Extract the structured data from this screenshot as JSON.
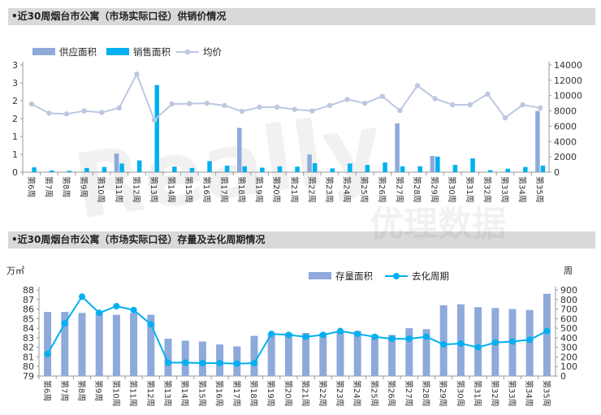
{
  "sections": {
    "top_title": "•近30周烟台市公寓（市场实际口径）供销价情况",
    "bottom_title": "•近30周烟台市公寓（市场实际口径）存量及去化周期情况"
  },
  "watermark": {
    "text1": "Really",
    "text2": "优理数据"
  },
  "colors": {
    "supply": "#8eaadb",
    "sales": "#00b0f0",
    "price": "#bdc7e0",
    "stock": "#8eaadb",
    "cycle": "#00b0f0"
  },
  "chart_data": [
    {
      "type": "bar",
      "categories": [
        "第6周",
        "第7周",
        "第8周",
        "第9周",
        "第10周",
        "第11周",
        "第12周",
        "第13周",
        "第14周",
        "第15周",
        "第16周",
        "第17周",
        "第18周",
        "第19周",
        "第20周",
        "第21周",
        "第22周",
        "第23周",
        "第24周",
        "第25周",
        "第26周",
        "第27周",
        "第28周",
        "第29周",
        "第30周",
        "第31周",
        "第32周",
        "第33周",
        "第34周",
        "第35周"
      ],
      "left_axis": {
        "ticks": [
          "0",
          "1",
          "1",
          "2",
          "2",
          "3",
          "3"
        ],
        "ylim": [
          0,
          3.1
        ]
      },
      "right_axis": {
        "ticks": [
          "0",
          "2000",
          "4000",
          "6000",
          "8000",
          "10000",
          "12000",
          "14000"
        ],
        "ylim": [
          0,
          14000
        ]
      },
      "legend": {
        "position": "top"
      },
      "series": [
        {
          "name": "供应面积",
          "kind": "bar",
          "axis": "left",
          "values": [
            0,
            0,
            0,
            0,
            0,
            0.54,
            0,
            0,
            0,
            0,
            0,
            0,
            1.28,
            0,
            0,
            0,
            0.51,
            0,
            0,
            0,
            0,
            1.41,
            0,
            0.47,
            0,
            0,
            0,
            0,
            0,
            1.77
          ]
        },
        {
          "name": "销售面积",
          "kind": "bar",
          "axis": "left",
          "values": [
            0.14,
            0.05,
            0.04,
            0.12,
            0.15,
            0.25,
            0.34,
            2.52,
            0.16,
            0.12,
            0.32,
            0.19,
            0.17,
            0.13,
            0.17,
            0.16,
            0.26,
            0.11,
            0.25,
            0.21,
            0.28,
            0.17,
            0.17,
            0.45,
            0.21,
            0.4,
            0.06,
            0.1,
            0.15,
            0.19
          ]
        },
        {
          "name": "均价",
          "kind": "line",
          "axis": "right",
          "values": [
            8900,
            7700,
            7600,
            8000,
            7800,
            8400,
            12800,
            6800,
            8900,
            8950,
            9000,
            8700,
            7950,
            8500,
            8500,
            8200,
            8000,
            8700,
            9500,
            9000,
            9900,
            8050,
            11300,
            9600,
            8800,
            8800,
            10200,
            7100,
            8800,
            8400
          ]
        }
      ]
    },
    {
      "type": "bar",
      "categories": [
        "第6周",
        "第7周",
        "第8周",
        "第9周",
        "第10周",
        "第11周",
        "第12周",
        "第13周",
        "第14周",
        "第15周",
        "第16周",
        "第17周",
        "第18周",
        "第19周",
        "第20周",
        "第21周",
        "第22周",
        "第23周",
        "第24周",
        "第25周",
        "第26周",
        "第27周",
        "第28周",
        "第29周",
        "第30周",
        "第31周",
        "第32周",
        "第33周",
        "第34周",
        "第35周"
      ],
      "left_unit": "万㎡",
      "right_unit": "周",
      "left_axis": {
        "ticks": [
          "79",
          "80",
          "81",
          "82",
          "83",
          "84",
          "85",
          "86",
          "87",
          "88"
        ],
        "ylim": [
          79,
          88
        ]
      },
      "right_axis": {
        "ticks": [
          "0",
          "100",
          "200",
          "300",
          "400",
          "500",
          "600",
          "700",
          "800",
          "900"
        ],
        "ylim": [
          0,
          900
        ]
      },
      "legend": {
        "position": "top"
      },
      "series": [
        {
          "name": "存量面积",
          "kind": "bar",
          "axis": "left",
          "values": [
            85.7,
            85.7,
            85.6,
            85.7,
            85.4,
            85.6,
            85.4,
            82.9,
            82.7,
            82.6,
            82.3,
            82.1,
            83.2,
            83.5,
            83.5,
            83.5,
            83.5,
            83.7,
            83.7,
            83.3,
            83.3,
            84.0,
            83.9,
            86.4,
            86.5,
            86.2,
            86.1,
            86.0,
            85.9,
            87.6
          ]
        },
        {
          "name": "去化周期",
          "kind": "line",
          "axis": "right",
          "values": [
            230,
            550,
            830,
            660,
            730,
            690,
            540,
            140,
            140,
            135,
            135,
            130,
            135,
            440,
            430,
            410,
            430,
            470,
            440,
            410,
            390,
            390,
            410,
            330,
            340,
            300,
            350,
            360,
            380,
            470
          ]
        }
      ]
    }
  ]
}
